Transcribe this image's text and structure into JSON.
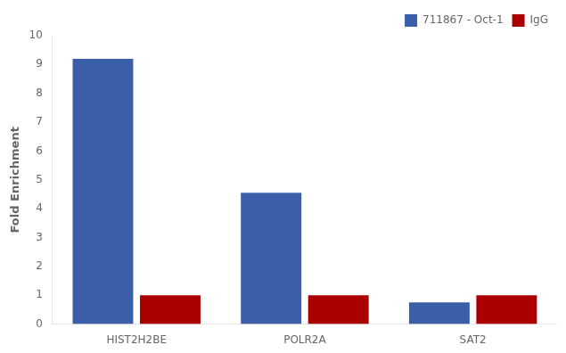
{
  "chart_data": {
    "type": "bar",
    "ylabel": "Fold Enrichment",
    "categories": [
      "HIST2H2BE",
      "POLR2A",
      "SAT2"
    ],
    "series": [
      {
        "name": "711867 - Oct-1",
        "color": "#3A5FA8",
        "values": [
          9.2,
          4.55,
          0.75
        ]
      },
      {
        "name": "IgG",
        "color": "#AA0000",
        "values": [
          1.0,
          1.0,
          1.0
        ]
      }
    ],
    "ylim": [
      0,
      10
    ],
    "yticks": [
      0,
      1,
      2,
      3,
      4,
      5,
      6,
      7,
      8,
      9,
      10
    ],
    "grid": false,
    "legend": "upper right"
  }
}
